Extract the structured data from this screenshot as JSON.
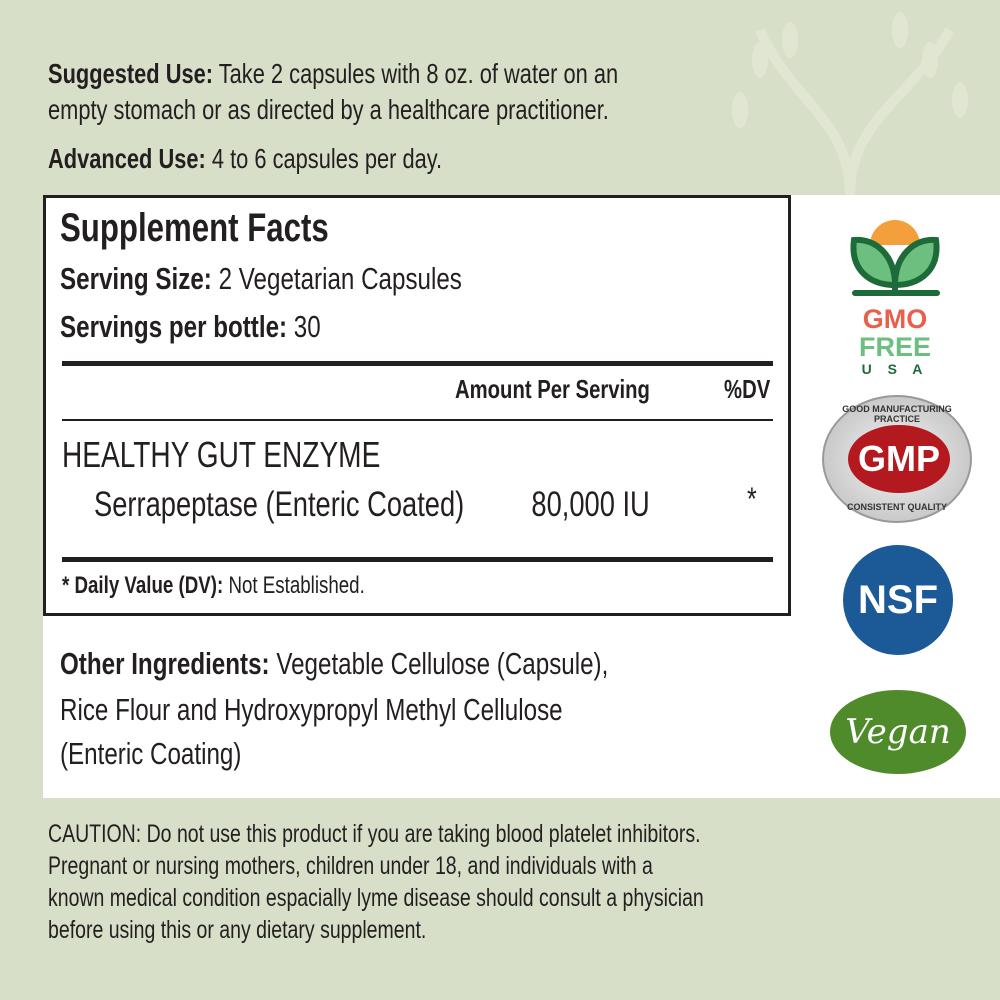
{
  "usage": {
    "suggested_label": "Suggested Use:",
    "suggested_line1": "Take 2 capsules with 8 oz. of water on an",
    "suggested_line2": "empty stomach or as directed by a healthcare practitioner.",
    "advanced_label": "Advanced Use:",
    "advanced_text": "4 to 6 capsules per day."
  },
  "facts": {
    "title": "Supplement Facts",
    "serving_size_label": "Serving Size:",
    "serving_size": "2 Vegetarian Capsules",
    "servings_label": "Servings per bottle:",
    "servings": "30",
    "col_amount": "Amount Per Serving",
    "col_dv": "%DV",
    "group": "HEALTHY GUT ENZYME",
    "ingredients": [
      {
        "name": "Serrapeptase (Enteric Coated)",
        "amount": "80,000 IU",
        "dv": "*"
      }
    ],
    "footnote_label": "* Daily Value (DV):",
    "footnote_text": "Not Established."
  },
  "other": {
    "label": "Other Ingredients:",
    "line1": "Vegetable Cellulose (Capsule),",
    "line2": "Rice Flour and Hydroxypropyl Methyl Cellulose",
    "line3": "(Enteric Coating)"
  },
  "caution": {
    "label": "CAUTION:",
    "line1": "Do not use this product if you are taking blood platelet inhibitors.",
    "line2": "Pregnant or nursing mothers, children under 18, and individuals with a",
    "line3": "known medical condition espacially lyme disease should consult a physician",
    "line4": "before using this or any dietary supplement."
  },
  "badges": {
    "gmo": {
      "line1": "GMO",
      "line2": "FREE",
      "line3": "U S A"
    },
    "gmp": {
      "main": "GMP",
      "top": "GOOD MANUFACTURING PRACTICE",
      "bottom": "CONSISTENT QUALITY"
    },
    "nsf": {
      "main": "NSF"
    },
    "vegan": {
      "main": "Vegan"
    }
  },
  "colors": {
    "background": "#d8dfc8",
    "gmo_red": "#e8604c",
    "gmo_green": "#6dbf7f",
    "gmp_red": "#b3191f",
    "nsf_blue": "#1b5a97",
    "vegan_green": "#4f8a2b"
  }
}
